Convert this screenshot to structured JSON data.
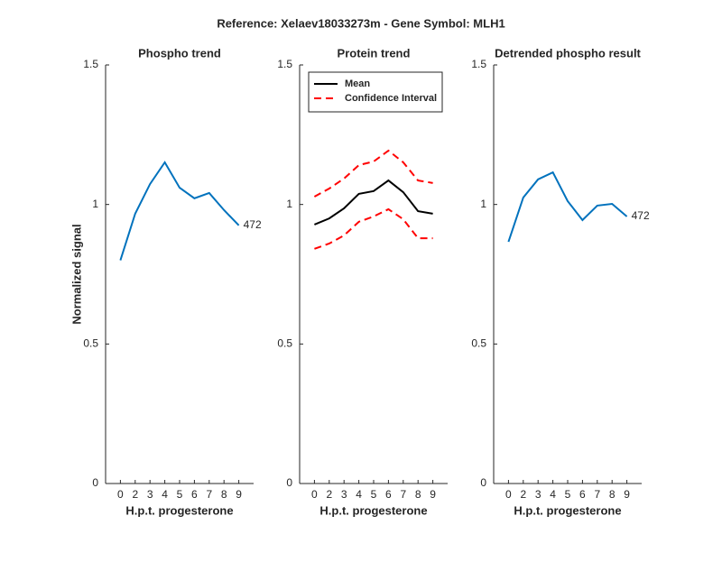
{
  "title": "Reference:  Xelaev18033273m - Gene Symbol:  MLH1",
  "chart_data": [
    {
      "type": "line",
      "title": "Phospho trend",
      "xlabel": "H.p.t. progesterone",
      "ylabel": "Normalized signal",
      "categories": [
        "0",
        "2",
        "3",
        "4",
        "5",
        "6",
        "7",
        "8",
        "9"
      ],
      "series": [
        {
          "name": "472",
          "color": "#0072bd",
          "style": "solid",
          "values": [
            0.8,
            0.967,
            1.073,
            1.151,
            1.06,
            1.022,
            1.041,
            0.98,
            0.925
          ]
        }
      ],
      "end_label": "472",
      "ylim": [
        0,
        1.5
      ],
      "yticks": [
        0,
        0.5,
        1,
        1.5
      ],
      "grid": false
    },
    {
      "type": "line",
      "title": "Protein trend",
      "xlabel": "H.p.t. progesterone",
      "categories": [
        "0",
        "2",
        "3",
        "4",
        "5",
        "6",
        "7",
        "8",
        "9"
      ],
      "series": [
        {
          "name": "Mean",
          "color": "#000000",
          "style": "solid",
          "values": [
            0.928,
            0.95,
            0.986,
            1.038,
            1.048,
            1.086,
            1.044,
            0.976,
            0.967
          ]
        },
        {
          "name": "Confidence Interval",
          "color": "#ff0000",
          "style": "dashed",
          "values": [
            1.028,
            1.057,
            1.093,
            1.141,
            1.154,
            1.193,
            1.151,
            1.086,
            1.077
          ],
          "lower": [
            0.841,
            0.86,
            0.889,
            0.938,
            0.957,
            0.983,
            0.947,
            0.879,
            0.879
          ]
        }
      ],
      "legend": "northwest",
      "ylim": [
        0,
        1.5
      ],
      "yticks": [
        0,
        0.5,
        1,
        1.5
      ],
      "grid": false
    },
    {
      "type": "line",
      "title": "Detrended phospho result",
      "xlabel": "H.p.t. progesterone",
      "categories": [
        "0",
        "2",
        "3",
        "4",
        "5",
        "6",
        "7",
        "8",
        "9"
      ],
      "series": [
        {
          "name": "472",
          "color": "#0072bd",
          "style": "solid",
          "values": [
            0.866,
            1.025,
            1.09,
            1.115,
            1.012,
            0.944,
            0.996,
            1.002,
            0.957
          ]
        }
      ],
      "end_label": "472",
      "ylim": [
        0,
        1.5
      ],
      "yticks": [
        0,
        0.5,
        1,
        1.5
      ],
      "grid": false
    }
  ]
}
